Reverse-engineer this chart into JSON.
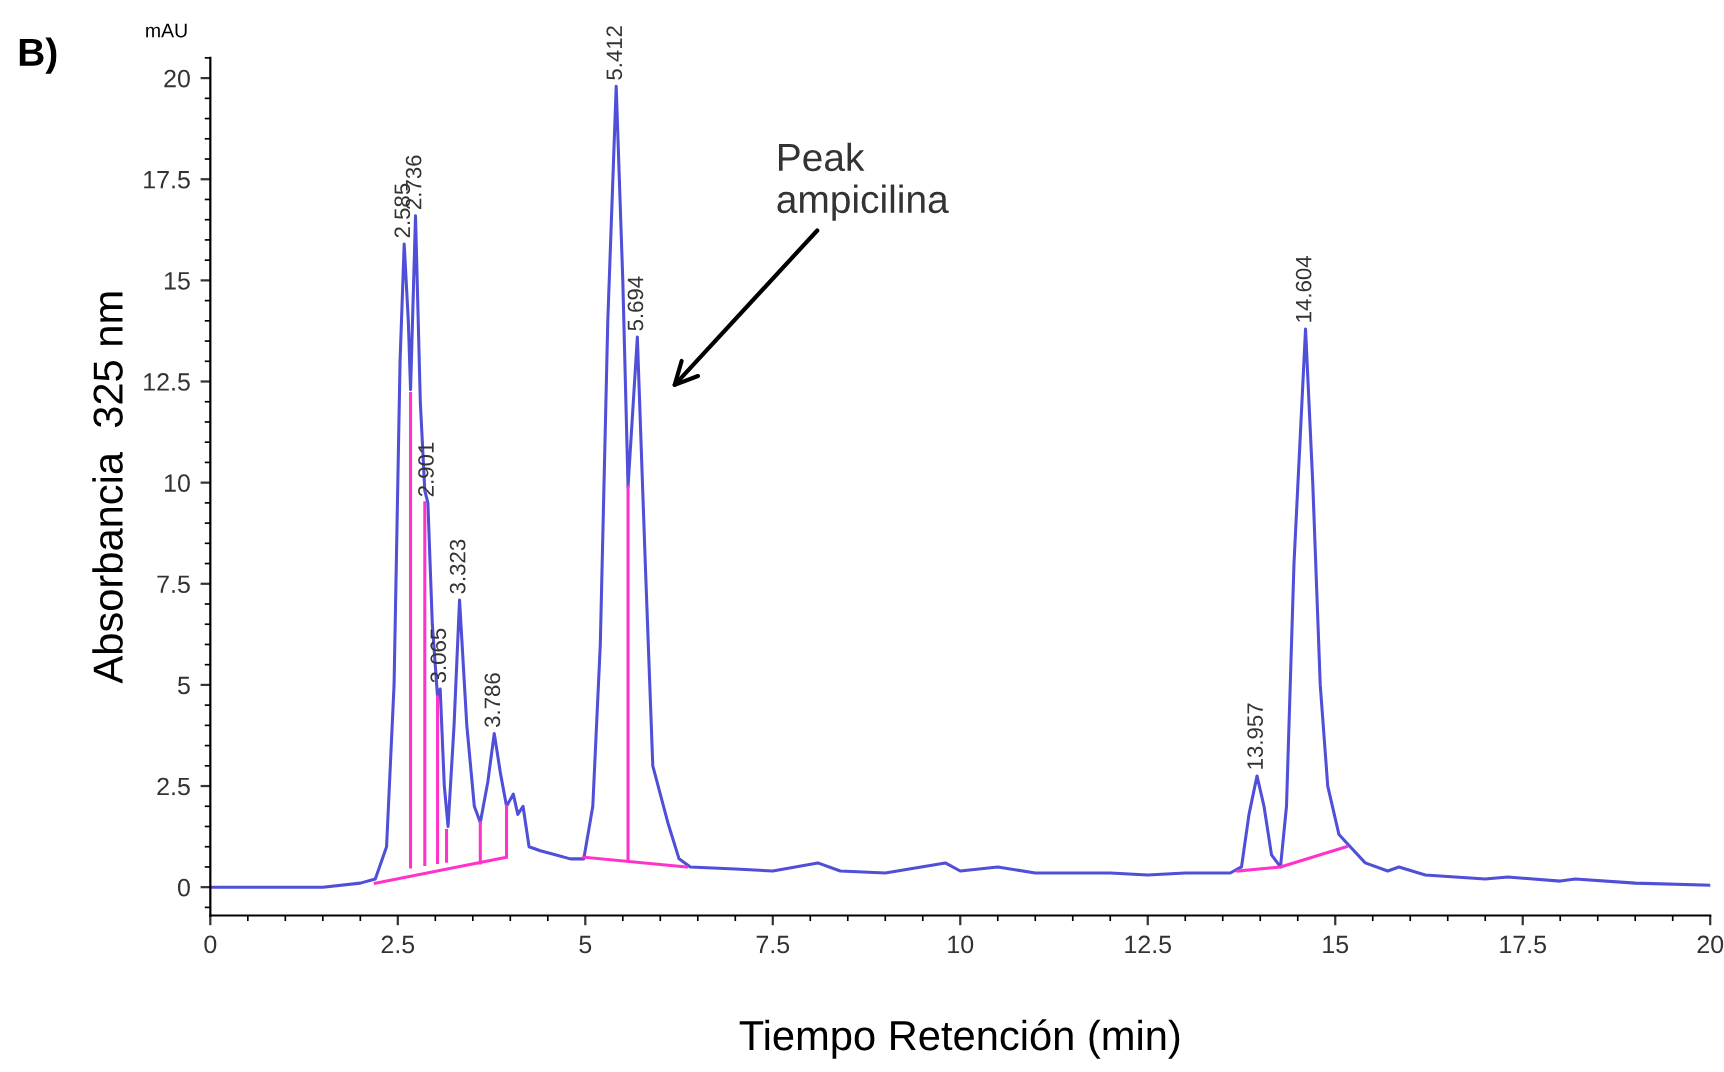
{
  "chart_data": {
    "type": "line",
    "xlabel": "Tiempo Retención (min)",
    "ylabel": "Absorbancia  325 nm",
    "xlim": [
      0,
      20
    ],
    "xticks": [
      0,
      2.5,
      5,
      7.5,
      10,
      12.5,
      15,
      17.5,
      20
    ],
    "ylim": [
      -0.7,
      20.5
    ],
    "yticks": [
      0,
      2.5,
      5,
      7.5,
      10,
      12.5,
      15,
      17.5,
      20
    ],
    "grid": false,
    "legend": false,
    "series": [
      {
        "color": "#4f4fd8",
        "x": [
          0,
          1.5,
          2.0,
          2.2,
          2.35,
          2.45,
          2.53,
          2.585,
          2.64,
          2.67,
          2.736,
          2.8,
          2.86,
          2.901,
          2.96,
          3.03,
          3.065,
          3.12,
          3.17,
          3.25,
          3.323,
          3.42,
          3.52,
          3.6,
          3.7,
          3.786,
          3.87,
          3.95,
          4.04,
          4.1,
          4.17,
          4.25,
          4.4,
          4.6,
          4.8,
          4.98,
          5.1,
          5.2,
          5.3,
          5.412,
          5.5,
          5.57,
          5.694,
          5.8,
          5.9,
          6.0,
          6.1,
          6.25,
          6.4,
          7.0,
          7.5,
          8.1,
          8.4,
          9.0,
          9.8,
          10.0,
          10.5,
          11.0,
          12.0,
          12.5,
          13.0,
          13.6,
          13.75,
          13.85,
          13.957,
          14.05,
          14.15,
          14.27,
          14.35,
          14.45,
          14.604,
          14.7,
          14.8,
          14.9,
          15.05,
          15.2,
          15.4,
          15.7,
          15.85,
          16.2,
          17.0,
          17.3,
          18.0,
          18.2,
          19.0,
          20.0
        ],
        "values": [
          0,
          0,
          0.1,
          0.2,
          1.0,
          5,
          13,
          15.9,
          14,
          12.3,
          16.6,
          12,
          9.8,
          9.5,
          6.5,
          4.7,
          4.9,
          2.5,
          1.5,
          4,
          7.1,
          4,
          2,
          1.6,
          2.6,
          3.8,
          2.8,
          2.0,
          2.3,
          1.8,
          2.0,
          1.0,
          0.9,
          0.8,
          0.7,
          0.7,
          2,
          6,
          14,
          19.8,
          15,
          9.9,
          13.6,
          8,
          3,
          2.3,
          1.6,
          0.7,
          0.5,
          0.45,
          0.4,
          0.6,
          0.4,
          0.35,
          0.6,
          0.4,
          0.5,
          0.35,
          0.35,
          0.3,
          0.35,
          0.35,
          0.5,
          1.8,
          2.75,
          2.0,
          0.8,
          0.5,
          2,
          8,
          13.8,
          10,
          5,
          2.5,
          1.3,
          1.0,
          0.6,
          0.4,
          0.5,
          0.3,
          0.2,
          0.25,
          0.15,
          0.2,
          0.1,
          0.05
        ]
      },
      {
        "color": "#ff33cc",
        "x": [
          2.2,
          3.95,
          null,
          2.67,
          2.67,
          null,
          2.86,
          2.86,
          null,
          3.03,
          3.03,
          null,
          3.15,
          3.15,
          null,
          3.6,
          3.6,
          null,
          3.95,
          3.95,
          null,
          4.98,
          6.35,
          null,
          5.57,
          5.57,
          null,
          13.7,
          14.27,
          15.15
        ],
        "values": [
          0.1,
          0.74,
          null,
          0.5,
          12.2,
          null,
          0.56,
          9.5,
          null,
          0.61,
          4.7,
          null,
          0.64,
          1.4,
          null,
          0.6,
          1.6,
          null,
          0.74,
          2.0,
          null,
          0.74,
          0.5,
          null,
          0.64,
          9.9,
          null,
          0.4,
          0.5,
          1.0
        ]
      }
    ],
    "annotations": [
      "B)",
      "mAU",
      {
        "text": "2.585",
        "x": 2.585,
        "y": 15.9
      },
      {
        "text": "2.736",
        "x": 2.736,
        "y": 16.6
      },
      {
        "text": "2.901",
        "x": 2.901,
        "y": 9.5
      },
      {
        "text": "3.065",
        "x": 3.065,
        "y": 4.9
      },
      {
        "text": "3.323",
        "x": 3.323,
        "y": 7.1
      },
      {
        "text": "3.786",
        "x": 3.786,
        "y": 3.8
      },
      {
        "text": "5.412",
        "x": 5.412,
        "y": 19.8
      },
      {
        "text": "5.694",
        "x": 5.694,
        "y": 13.6
      },
      {
        "text": "13.957",
        "x": 13.957,
        "y": 2.75
      },
      {
        "text": "14.604",
        "x": 14.604,
        "y": 13.8
      },
      "Peak\nampicilina"
    ]
  }
}
